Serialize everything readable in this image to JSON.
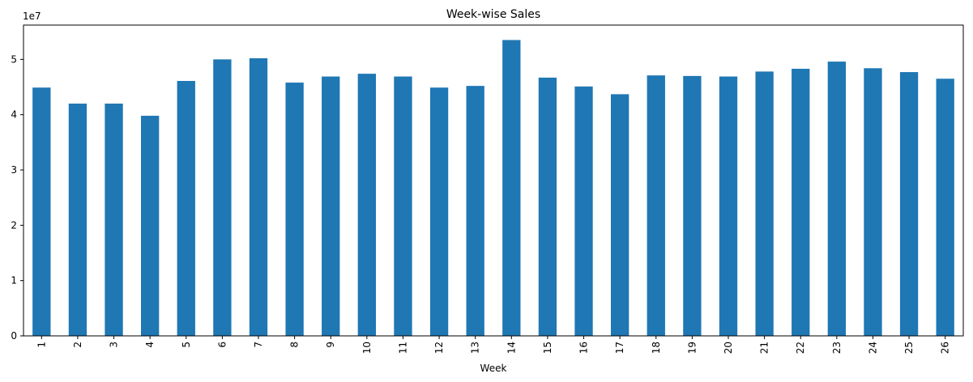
{
  "chart_data": {
    "type": "bar",
    "title": "Week-wise Sales",
    "xlabel": "Week",
    "ylabel": "",
    "y_scale_label": "1e7",
    "y_tick_scale": 10000000,
    "categories": [
      "1",
      "2",
      "3",
      "4",
      "5",
      "6",
      "7",
      "8",
      "9",
      "10",
      "11",
      "12",
      "13",
      "14",
      "15",
      "16",
      "17",
      "18",
      "19",
      "20",
      "21",
      "22",
      "23",
      "24",
      "25",
      "26"
    ],
    "values": [
      44900000,
      42000000,
      42000000,
      39800000,
      46100000,
      50000000,
      50200000,
      45800000,
      46900000,
      47400000,
      46900000,
      44900000,
      45200000,
      53500000,
      46700000,
      45100000,
      43700000,
      47100000,
      47000000,
      46900000,
      47800000,
      48300000,
      49600000,
      48400000,
      47700000,
      46500000
    ],
    "y_ticks": [
      0,
      10000000,
      20000000,
      30000000,
      40000000,
      50000000
    ],
    "ylim": [
      0,
      56200000
    ],
    "bar_color": "#1f77b4",
    "grid": false,
    "legend": "none"
  }
}
